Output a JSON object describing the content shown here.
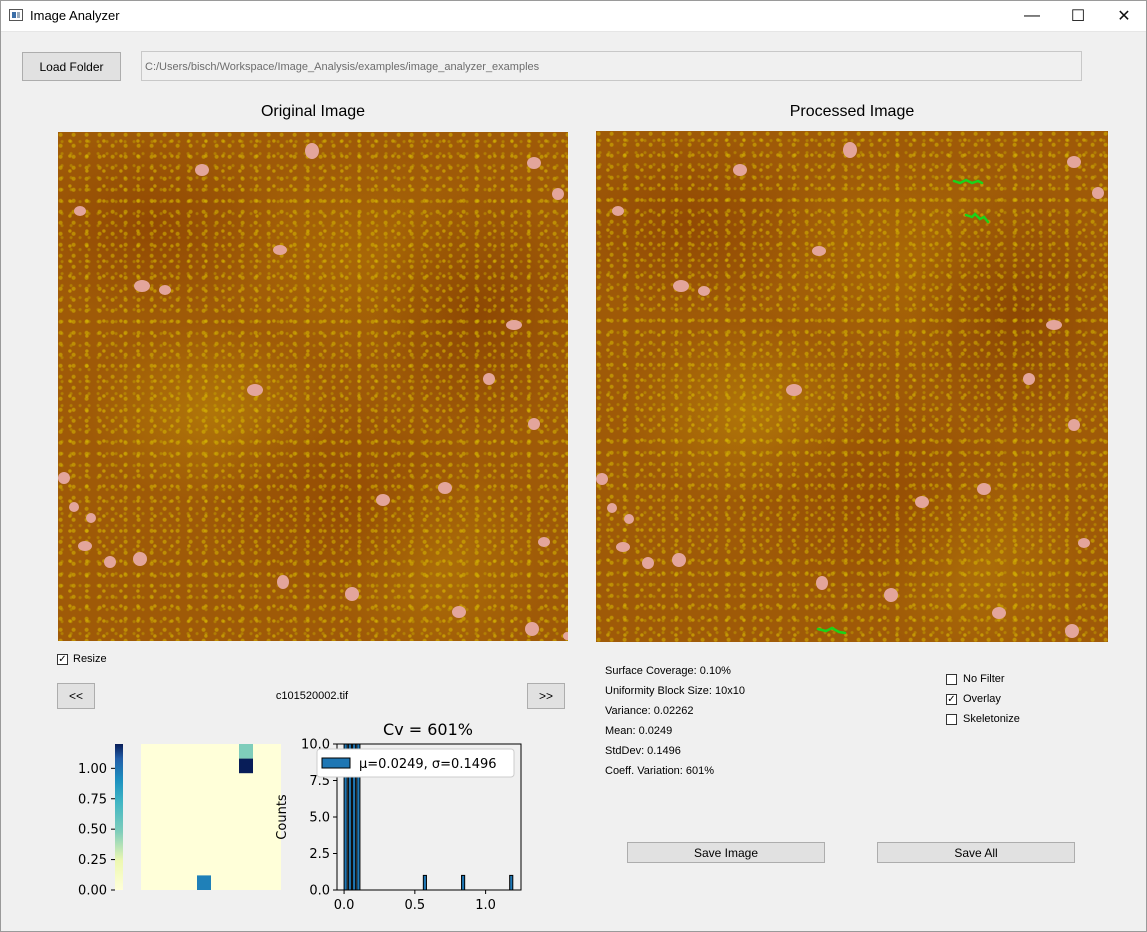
{
  "window": {
    "title": "Image Analyzer",
    "minimize_glyph": "—",
    "maximize_glyph": "☐",
    "close_glyph": "✕"
  },
  "toolbar": {
    "load_folder_label": "Load Folder",
    "folder_path": "C:/Users/bisch/Workspace/Image_Analysis/examples/image_analyzer_examples"
  },
  "panels": {
    "original_title": "Original Image",
    "processed_title": "Processed Image"
  },
  "controls": {
    "resize_label": "Resize",
    "resize_checked": true,
    "prev_label": "<<",
    "next_label": ">>",
    "filename": "c101520002.tif"
  },
  "stats": {
    "surface_coverage": "Surface Coverage: 0.10%",
    "block_size": "Uniformity Block Size:  10x10",
    "variance": "Variance: 0.02262",
    "mean": "Mean: 0.0249",
    "stddev": "StdDev: 0.1496",
    "coeff_variation": "Coeff. Variation: 601%"
  },
  "options": {
    "no_filter_label": "No Filter",
    "no_filter_checked": false,
    "overlay_label": "Overlay",
    "overlay_checked": true,
    "skeletonize_label": "Skeletonize",
    "skeletonize_checked": false
  },
  "buttons": {
    "save_image_label": "Save Image",
    "save_all_label": "Save All"
  },
  "colors": {
    "particle": "#e3a59b",
    "skeleton": "#19d419",
    "hist_legend": "#1f77b4",
    "heatmap_bg": "#ffffd9",
    "heatmap_dark": "#081d58"
  },
  "chart_data": [
    {
      "type": "heatmap",
      "colorbar_ticks": [
        "1.00",
        "0.75",
        "0.50",
        "0.25",
        "0.00"
      ],
      "colorbar_range": [
        0,
        1.2
      ],
      "grid_size": [
        10,
        10
      ],
      "nonzero_cells": [
        {
          "row": 0,
          "col": 7,
          "value": 0.5
        },
        {
          "row": 1,
          "col": 7,
          "value": 1.2
        },
        {
          "row": 9,
          "col": 4,
          "value": 0.85
        }
      ]
    },
    {
      "type": "bar",
      "title": "Cv =  601%",
      "ylabel": "Counts",
      "legend": "μ=0.0249, σ=0.1496",
      "x_ticks": [
        "0.0",
        "0.5",
        "1.0"
      ],
      "y_ticks": [
        "0.0",
        "2.5",
        "5.0",
        "7.5",
        "10.0"
      ],
      "xlim": [
        -0.05,
        1.25
      ],
      "ylim": [
        0,
        10
      ],
      "bins": [
        {
          "x": 0.0,
          "count": 10
        },
        {
          "x": 0.03,
          "count": 10
        },
        {
          "x": 0.06,
          "count": 10
        },
        {
          "x": 0.09,
          "count": 10
        },
        {
          "x": 0.56,
          "count": 1
        },
        {
          "x": 0.83,
          "count": 1
        },
        {
          "x": 1.17,
          "count": 1
        }
      ]
    }
  ]
}
